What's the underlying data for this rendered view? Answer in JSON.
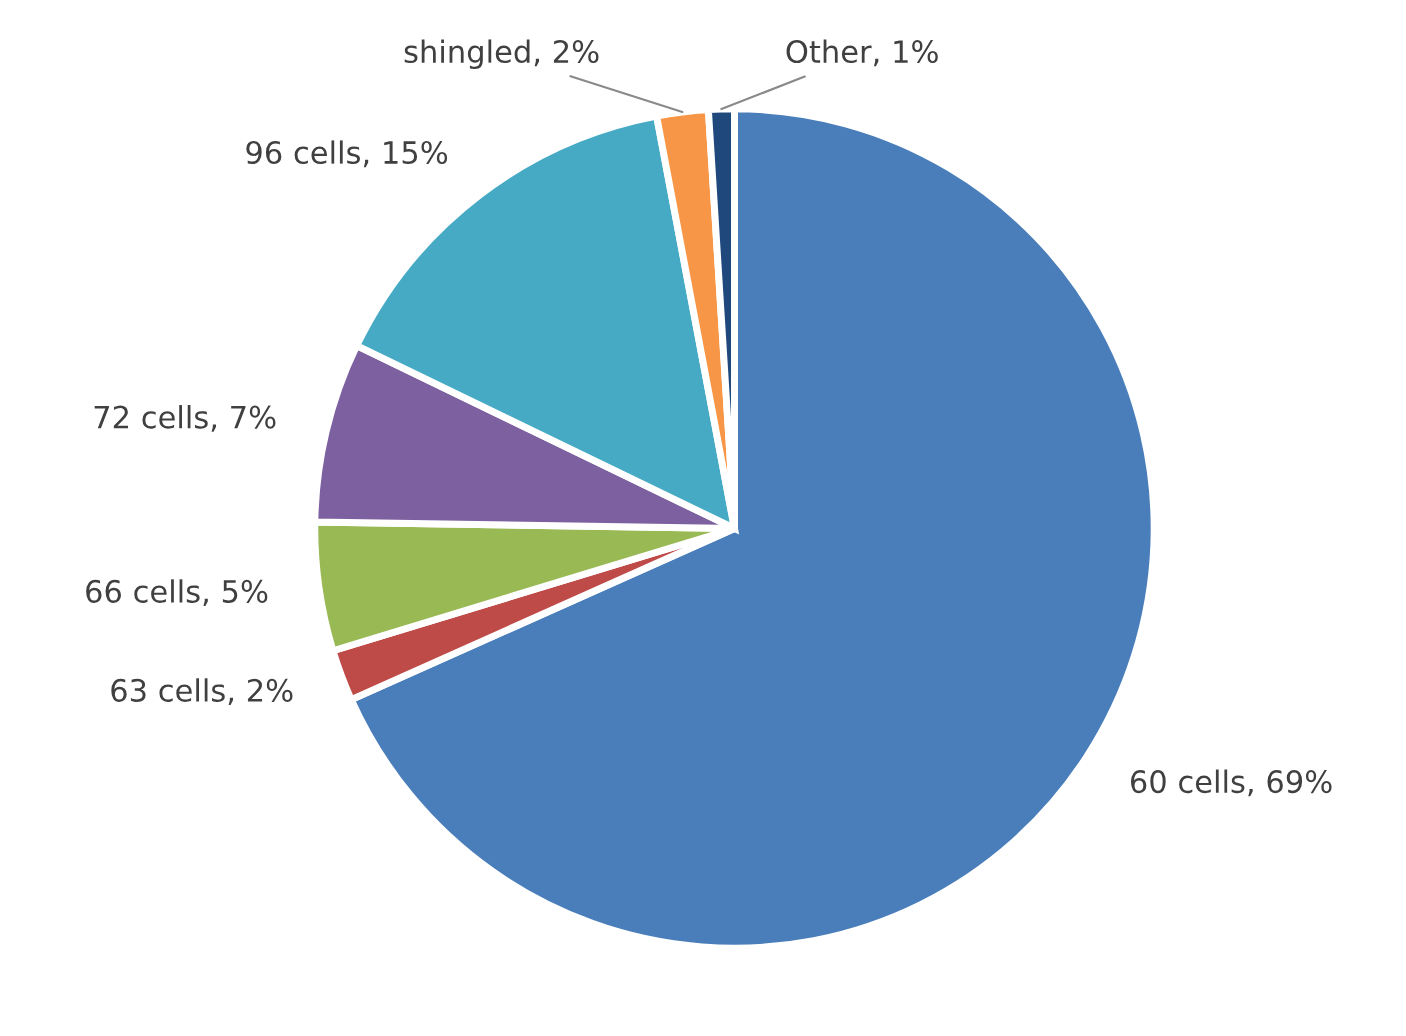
{
  "chart_data": {
    "type": "pie",
    "categories": [
      "60 cells, 69%",
      "63 cells, 2%",
      "66 cells, 5%",
      "72 cells, 7%",
      "96 cells, 15%",
      "shingled, 2%",
      "Other, 1%"
    ],
    "values": [
      69,
      2,
      5,
      7,
      15,
      2,
      1
    ],
    "colors": [
      "#4a7ebb",
      "#be4b48",
      "#98b954",
      "#7d60a0",
      "#46aac5",
      "#f79646",
      "#1f497d"
    ]
  }
}
